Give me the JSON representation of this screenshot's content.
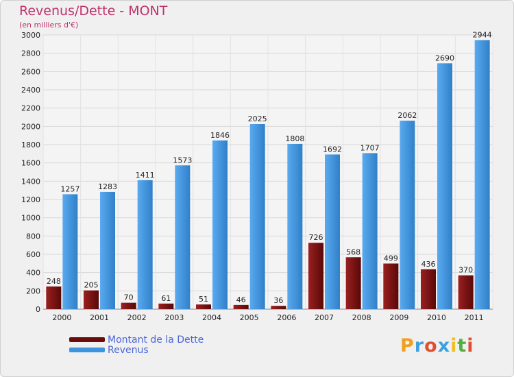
{
  "chart_data": {
    "type": "bar",
    "title": "Revenus/Dette - MONT",
    "subtitle": "(en milliers d'€)",
    "categories": [
      "2000",
      "2001",
      "2002",
      "2003",
      "2004",
      "2005",
      "2006",
      "2007",
      "2008",
      "2009",
      "2010",
      "2011"
    ],
    "series": [
      {
        "name": "Montant de la Dette",
        "color": "#7a1010",
        "values": [
          248,
          205,
          70,
          61,
          51,
          46,
          36,
          726,
          568,
          499,
          436,
          370
        ]
      },
      {
        "name": "Revenus",
        "color": "#3f95dd",
        "values": [
          1257,
          1283,
          1411,
          1573,
          1846,
          2025,
          1808,
          1692,
          1707,
          2062,
          2690,
          2944
        ]
      }
    ],
    "ylim": [
      0,
      3000
    ],
    "yticks": [
      0,
      200,
      400,
      600,
      800,
      1000,
      1200,
      1400,
      1600,
      1800,
      2000,
      2200,
      2400,
      2600,
      2800,
      3000
    ],
    "grid": true,
    "legend_position": "bottom-left"
  },
  "brand": {
    "logo_letters": [
      "P",
      "r",
      "o",
      "x",
      "i",
      "t",
      "i"
    ],
    "logo_colors": [
      "#f0a020",
      "#3fa0e0",
      "#e05030",
      "#3fa0e0",
      "#f0c020",
      "#50b040",
      "#e05030"
    ]
  }
}
